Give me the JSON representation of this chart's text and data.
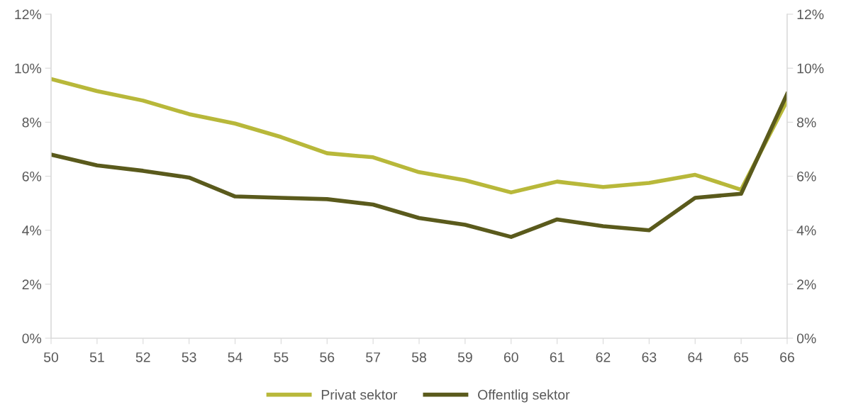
{
  "chart_data": {
    "type": "line",
    "x": [
      50,
      51,
      52,
      53,
      54,
      55,
      56,
      57,
      58,
      59,
      60,
      61,
      62,
      63,
      64,
      65,
      66
    ],
    "series": [
      {
        "name": "Privat sektor",
        "color": "#b8b83a",
        "values": [
          9.6,
          9.15,
          8.8,
          8.3,
          7.95,
          7.45,
          6.85,
          6.7,
          6.15,
          5.85,
          5.4,
          5.8,
          5.6,
          5.75,
          6.05,
          5.5,
          8.8
        ]
      },
      {
        "name": "Offentlig sektor",
        "color": "#5a5a1c",
        "values": [
          6.8,
          6.4,
          6.2,
          5.95,
          5.25,
          5.2,
          5.15,
          4.95,
          4.45,
          4.2,
          3.75,
          4.4,
          4.15,
          4.0,
          5.2,
          5.35,
          9.05
        ]
      }
    ],
    "xlim": [
      50,
      66
    ],
    "xticks": [
      50,
      51,
      52,
      53,
      54,
      55,
      56,
      57,
      58,
      59,
      60,
      61,
      62,
      63,
      64,
      65,
      66
    ],
    "ylim": [
      0,
      12
    ],
    "yticks": [
      {
        "value": 0,
        "label": "0%"
      },
      {
        "value": 2,
        "label": "2%"
      },
      {
        "value": 4,
        "label": "4%"
      },
      {
        "value": 6,
        "label": "6%"
      },
      {
        "value": 8,
        "label": "8%"
      },
      {
        "value": 10,
        "label": "10%"
      },
      {
        "value": 12,
        "label": "12%"
      }
    ],
    "y2lim": [
      0,
      12
    ],
    "y2ticks": [
      {
        "value": 0,
        "label": "0%"
      },
      {
        "value": 2,
        "label": "2%"
      },
      {
        "value": 4,
        "label": "4%"
      },
      {
        "value": 6,
        "label": "6%"
      },
      {
        "value": 8,
        "label": "8%"
      },
      {
        "value": 10,
        "label": "10%"
      },
      {
        "value": 12,
        "label": "12%"
      }
    ],
    "grid": false,
    "legend": "bottom",
    "marker": "none",
    "line_style": "solid"
  }
}
